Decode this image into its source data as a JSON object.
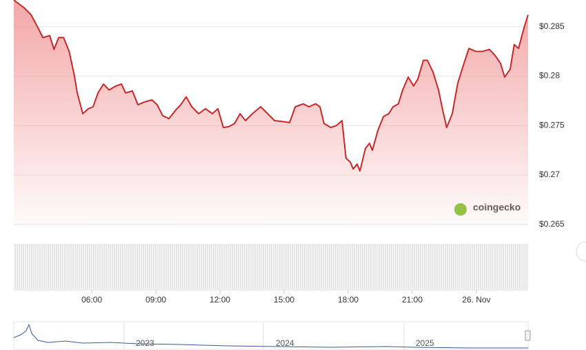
{
  "chart_data": {
    "type": "line",
    "x": [
      2.35,
      2.84,
      3.16,
      3.48,
      3.71,
      4.03,
      4.23,
      4.45,
      4.68,
      4.94,
      5.19,
      5.32,
      5.58,
      5.84,
      6.06,
      6.29,
      6.55,
      6.81,
      7.13,
      7.39,
      7.58,
      7.9,
      8.16,
      8.48,
      8.81,
      9.06,
      9.32,
      9.61,
      9.94,
      10.16,
      10.42,
      10.68,
      11.0,
      11.32,
      11.65,
      11.9,
      12.16,
      12.42,
      12.68,
      12.94,
      13.19,
      13.52,
      13.9,
      14.23,
      14.55,
      14.94,
      15.26,
      15.52,
      15.9,
      16.16,
      16.48,
      16.68,
      16.87,
      17.19,
      17.45,
      17.71,
      17.9,
      18.1,
      18.23,
      18.42,
      18.55,
      18.81,
      19.0,
      19.13,
      19.39,
      19.65,
      19.9,
      20.1,
      20.35,
      20.55,
      20.81,
      21.06,
      21.26,
      21.52,
      21.71,
      21.97,
      22.23,
      22.42,
      22.61,
      22.87,
      23.13,
      23.39,
      23.65,
      23.97,
      24.29,
      24.61,
      24.87,
      25.13,
      25.32,
      25.58,
      25.77,
      25.97,
      26.23,
      26.42
    ],
    "series": [
      {
        "color": "#c62828",
        "values": [
          0.2877,
          0.2869,
          0.2862,
          0.2849,
          0.2839,
          0.2841,
          0.2827,
          0.2839,
          0.2839,
          0.2825,
          0.28,
          0.2783,
          0.2762,
          0.2767,
          0.2769,
          0.2783,
          0.2792,
          0.2786,
          0.279,
          0.2792,
          0.2783,
          0.2785,
          0.2771,
          0.2774,
          0.2776,
          0.2771,
          0.276,
          0.2757,
          0.2766,
          0.2771,
          0.2779,
          0.2769,
          0.2762,
          0.2767,
          0.2762,
          0.2767,
          0.2748,
          0.2749,
          0.2752,
          0.2762,
          0.2755,
          0.2762,
          0.2769,
          0.2762,
          0.2755,
          0.2754,
          0.2753,
          0.2769,
          0.2772,
          0.2769,
          0.2772,
          0.2769,
          0.2752,
          0.2748,
          0.275,
          0.2755,
          0.2717,
          0.2713,
          0.2706,
          0.2711,
          0.2704,
          0.2727,
          0.2732,
          0.2725,
          0.2745,
          0.2759,
          0.2762,
          0.2769,
          0.2772,
          0.2786,
          0.2799,
          0.279,
          0.2797,
          0.2816,
          0.2816,
          0.2804,
          0.2786,
          0.2766,
          0.2748,
          0.2762,
          0.2793,
          0.2811,
          0.2828,
          0.2825,
          0.2825,
          0.2827,
          0.2821,
          0.2813,
          0.2799,
          0.2807,
          0.2832,
          0.2828,
          0.2849,
          0.2862
        ]
      }
    ],
    "xlim": [
      2.35,
      26.42
    ],
    "xticks": [
      {
        "value": 6,
        "label": "06:00"
      },
      {
        "value": 9,
        "label": "09:00"
      },
      {
        "value": 12,
        "label": "12:00"
      },
      {
        "value": 15,
        "label": "15:00"
      },
      {
        "value": 18,
        "label": "18:00"
      },
      {
        "value": 21,
        "label": "21:00"
      },
      {
        "value": 24,
        "label": "26. Nov"
      }
    ],
    "ylim": [
      0.2647,
      0.2877
    ],
    "yticks": [
      {
        "value": 0.265,
        "label": "$0.265"
      },
      {
        "value": 0.27,
        "label": "$0.27"
      },
      {
        "value": 0.275,
        "label": "$0.275"
      },
      {
        "value": 0.28,
        "label": "$0.28"
      },
      {
        "value": 0.285,
        "label": "$0.285"
      }
    ],
    "grid": true,
    "watermark": "coingecko",
    "navigator_ticks": [
      "2023",
      "2024",
      "2025"
    ]
  }
}
